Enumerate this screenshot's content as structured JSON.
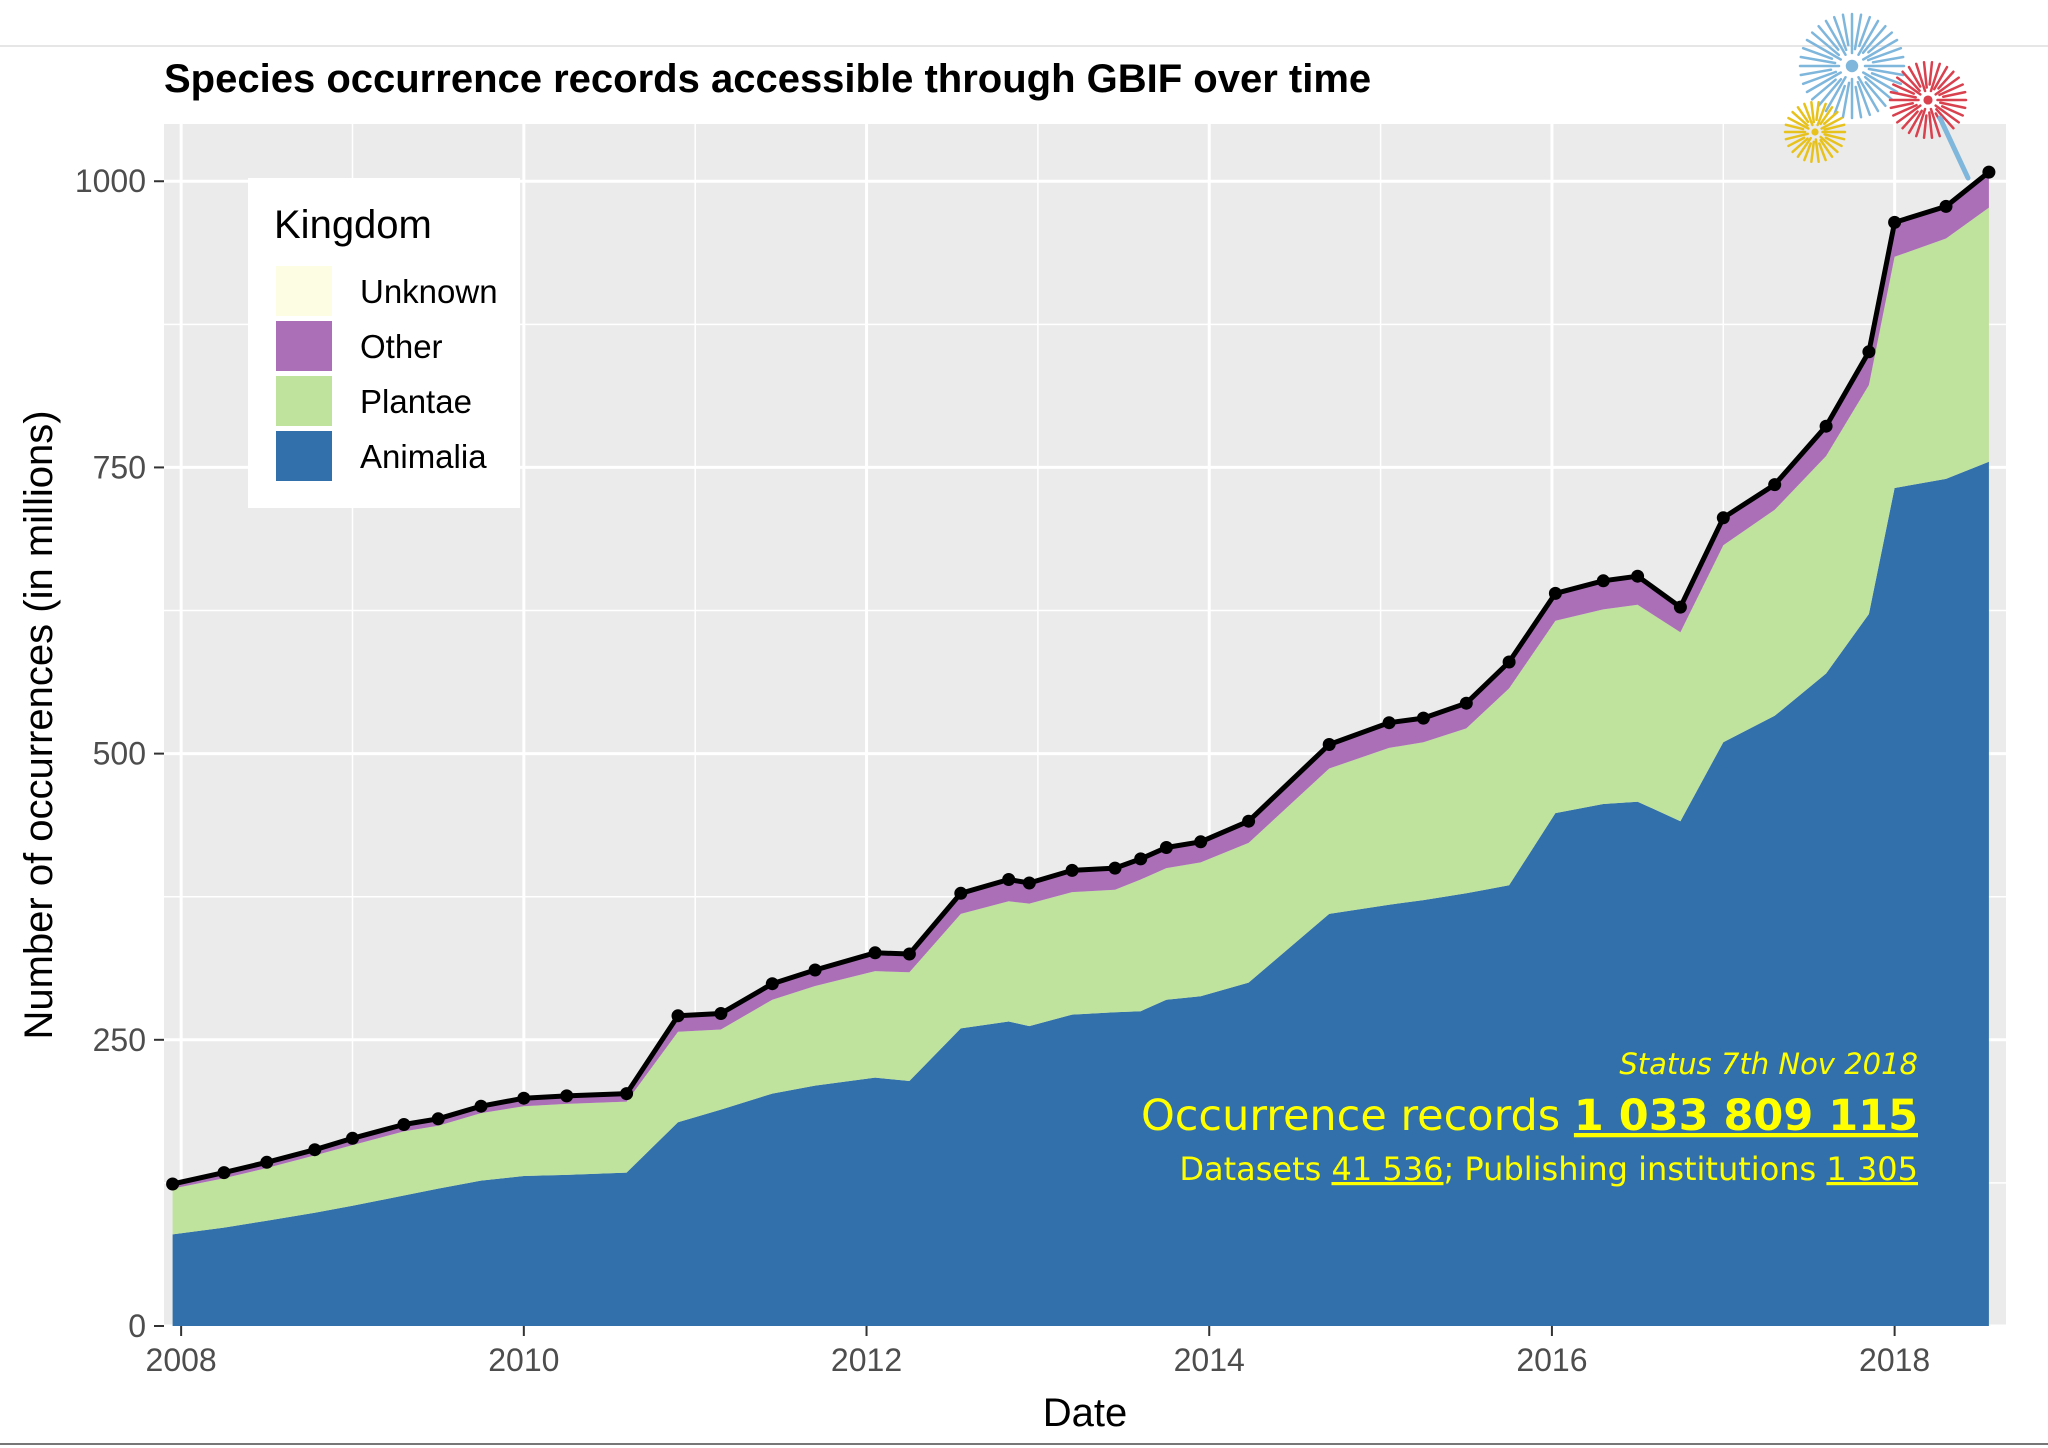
{
  "chart_data": {
    "type": "area",
    "stacked": true,
    "title": "Species occurrence records accessible through GBIF over time",
    "xlabel": "Date",
    "ylabel": "Number of occurrences (in millions)",
    "xlim": [
      2007.9,
      2018.65
    ],
    "ylim": [
      0,
      1050
    ],
    "x_ticks": [
      2008,
      2010,
      2012,
      2014,
      2016,
      2018
    ],
    "y_ticks": [
      0,
      250,
      500,
      750,
      1000
    ],
    "grid": true,
    "legend": {
      "title": "Kingdom",
      "position": "top-left",
      "entries": [
        {
          "name": "Unknown",
          "color": "#fdfde3"
        },
        {
          "name": "Other",
          "color": "#ab6fb8"
        },
        {
          "name": "Plantae",
          "color": "#bfe29c"
        },
        {
          "name": "Animalia",
          "color": "#3170aa"
        }
      ]
    },
    "colors": {
      "Unknown": "#fdfde3",
      "Other": "#ab6fb8",
      "Plantae": "#bfe29c",
      "Animalia": "#3170aa",
      "total_line": "#000000",
      "panel": "#ebebeb",
      "grid": "#ffffff"
    },
    "x": [
      2007.95,
      2008.25,
      2008.5,
      2008.78,
      2009.0,
      2009.3,
      2009.5,
      2009.75,
      2010.0,
      2010.25,
      2010.6,
      2010.9,
      2011.15,
      2011.45,
      2011.7,
      2012.05,
      2012.25,
      2012.55,
      2012.83,
      2012.95,
      2013.2,
      2013.45,
      2013.6,
      2013.75,
      2013.95,
      2014.23,
      2014.7,
      2015.05,
      2015.25,
      2015.5,
      2015.75,
      2016.02,
      2016.3,
      2016.5,
      2016.75,
      2017.0,
      2017.3,
      2017.6,
      2017.85,
      2018.0,
      2018.3,
      2018.55
    ],
    "series": [
      {
        "name": "Animalia",
        "values": [
          80,
          86,
          92,
          99,
          105,
          114,
          120,
          127,
          131,
          132,
          134,
          178,
          189,
          203,
          210,
          217,
          214,
          260,
          266,
          262,
          272,
          274,
          275,
          285,
          288,
          300,
          360,
          368,
          372,
          378,
          385,
          448,
          456,
          458,
          441,
          510,
          533,
          570,
          622,
          732,
          740,
          755
        ]
      },
      {
        "name": "Plantae",
        "values": [
          40,
          43,
          46,
          50,
          53,
          56,
          55,
          59,
          61,
          62,
          62,
          79,
          70,
          82,
          87,
          93,
          95,
          100,
          105,
          107,
          107,
          107,
          115,
          115,
          117,
          122,
          127,
          137,
          138,
          144,
          172,
          168,
          170,
          172,
          165,
          172,
          180,
          190,
          200,
          202,
          210,
          222
        ]
      },
      {
        "name": "Other",
        "values": [
          4,
          5,
          5,
          5,
          6,
          6,
          6,
          6,
          7,
          7,
          7,
          14,
          14,
          14,
          14,
          16,
          16,
          18,
          19,
          18,
          19,
          19,
          18,
          18,
          18,
          19,
          21,
          22,
          21,
          22,
          23,
          24,
          25,
          25,
          22,
          24,
          22,
          26,
          29,
          30,
          28,
          31
        ]
      },
      {
        "name": "Unknown",
        "values": [
          0,
          0,
          0,
          0,
          0,
          0,
          0,
          0,
          0,
          0,
          0,
          0,
          0,
          0,
          0,
          0,
          0,
          0,
          0,
          0,
          0,
          0,
          0,
          0,
          0,
          0,
          0,
          0,
          0,
          0,
          0,
          0,
          0,
          0,
          0,
          0,
          0,
          0,
          0,
          0,
          0,
          0
        ]
      }
    ],
    "total": [
      124,
      134,
      143,
      154,
      164,
      176,
      181,
      192,
      199,
      201,
      203,
      271,
      273,
      299,
      311,
      326,
      325,
      378,
      390,
      387,
      398,
      400,
      408,
      418,
      423,
      441,
      508,
      527,
      531,
      544,
      580,
      640,
      651,
      655,
      628,
      706,
      735,
      786,
      851,
      964,
      978,
      1008
    ],
    "annotations": {
      "status": "Status 7th Nov 2018",
      "occurrence_label": "Occurrence records ",
      "occurrence_value": "1 033 809 115",
      "datasets_label": "Datasets ",
      "datasets_value": "41 536",
      "institutions_label": "; Publishing institutions ",
      "institutions_value": "1 305",
      "color": "#ffff00"
    }
  }
}
